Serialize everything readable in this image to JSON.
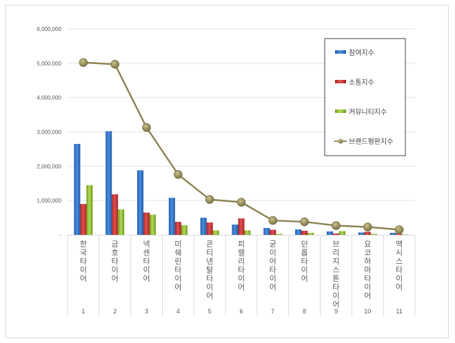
{
  "chart_data": {
    "type": "bar",
    "title": "",
    "xlabel": "",
    "ylabel": "",
    "ylim": [
      0,
      6000000
    ],
    "yticks": [
      "-",
      "1,000,000",
      "2,000,000",
      "3,000,000",
      "4,000,000",
      "5,000,000",
      "6,000,000"
    ],
    "grid": true,
    "legend_position": "right",
    "categories": [
      "1",
      "2",
      "3",
      "4",
      "5",
      "6",
      "7",
      "8",
      "9",
      "10",
      "11"
    ],
    "category_names": [
      "한국타이어",
      "금호타이어",
      "넥센타이어",
      "미쉐린타이어",
      "콘티넨탈타이어",
      "피렐리타이어",
      "굳이어타이어",
      "던롭타이어",
      "브리지스톤타이어",
      "요코하마타이어",
      "맥시스타이어"
    ],
    "series": [
      {
        "name": "참여지수",
        "type": "bar",
        "color": "#2e6fc4",
        "values": [
          2650000,
          3020000,
          1880000,
          1080000,
          500000,
          300000,
          200000,
          160000,
          100000,
          70000,
          60000
        ]
      },
      {
        "name": "소통지수",
        "type": "bar",
        "color": "#cc3333",
        "values": [
          900000,
          1180000,
          650000,
          380000,
          360000,
          480000,
          150000,
          120000,
          40000,
          90000,
          30000
        ]
      },
      {
        "name": "커뮤니티지수",
        "type": "bar",
        "color": "#8fbf2f",
        "values": [
          1450000,
          740000,
          590000,
          280000,
          130000,
          130000,
          30000,
          60000,
          110000,
          30000,
          10000
        ]
      },
      {
        "name": "브랜드평판지수",
        "type": "line",
        "color": "#8c8455",
        "values": [
          5020000,
          4970000,
          3130000,
          1760000,
          1030000,
          950000,
          420000,
          380000,
          270000,
          230000,
          150000
        ]
      }
    ]
  },
  "legend": {
    "items": [
      "참여지수",
      "소통지수",
      "커뮤니티지수",
      "브랜드평판지수"
    ]
  }
}
